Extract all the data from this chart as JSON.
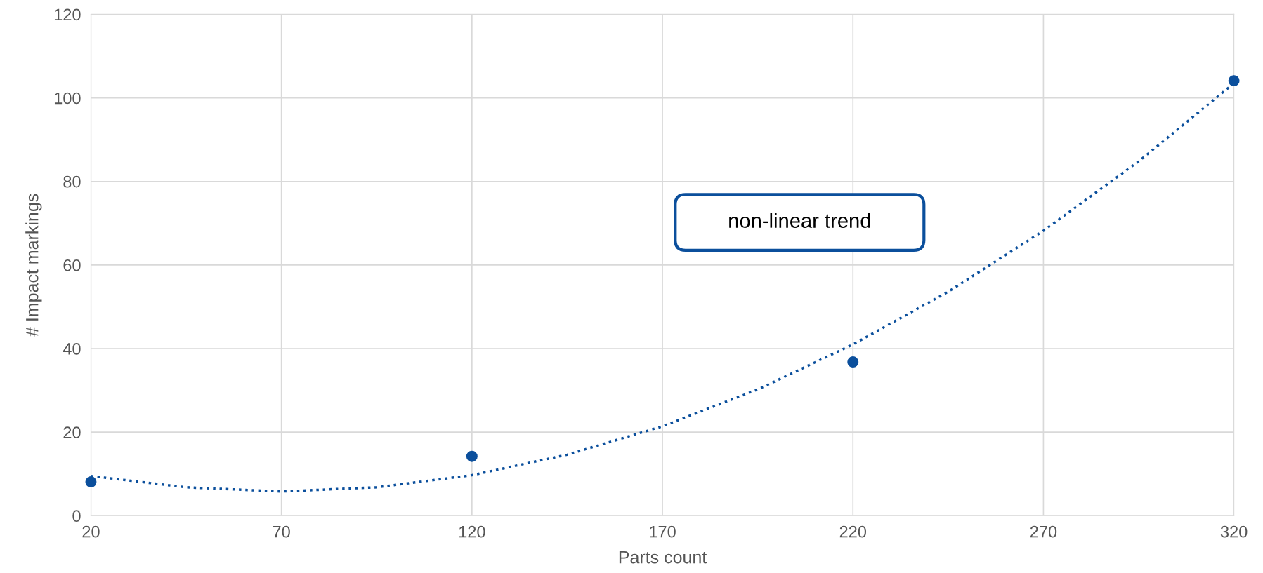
{
  "chart_data": {
    "type": "scatter",
    "xlabel": "Parts count",
    "ylabel": "# Impact markings",
    "xlim": [
      20,
      320
    ],
    "xticks": [
      20,
      70,
      120,
      170,
      220,
      270,
      320
    ],
    "ylim": [
      0,
      120
    ],
    "yticks": [
      0,
      20,
      40,
      60,
      80,
      100,
      120
    ],
    "grid": true,
    "annotations": [
      "non-linear trend"
    ],
    "series": [
      {
        "marker": "circle",
        "color": "#0b4f9c",
        "x": [
          20,
          120,
          220,
          320
        ],
        "values": [
          8.1,
          14.2,
          36.8,
          104.1
        ]
      },
      {
        "type": "line",
        "color": "#0b4f9c",
        "line_style": "dotted",
        "marker": "none",
        "x": [
          20,
          45,
          70,
          95,
          120,
          145,
          170,
          195,
          220,
          245,
          270,
          295,
          320
        ],
        "values": [
          9.5,
          6.8,
          5.8,
          6.8,
          9.7,
          14.6,
          21.4,
          30.2,
          41,
          53.6,
          68.2,
          84.8,
          103.5
        ]
      }
    ]
  }
}
